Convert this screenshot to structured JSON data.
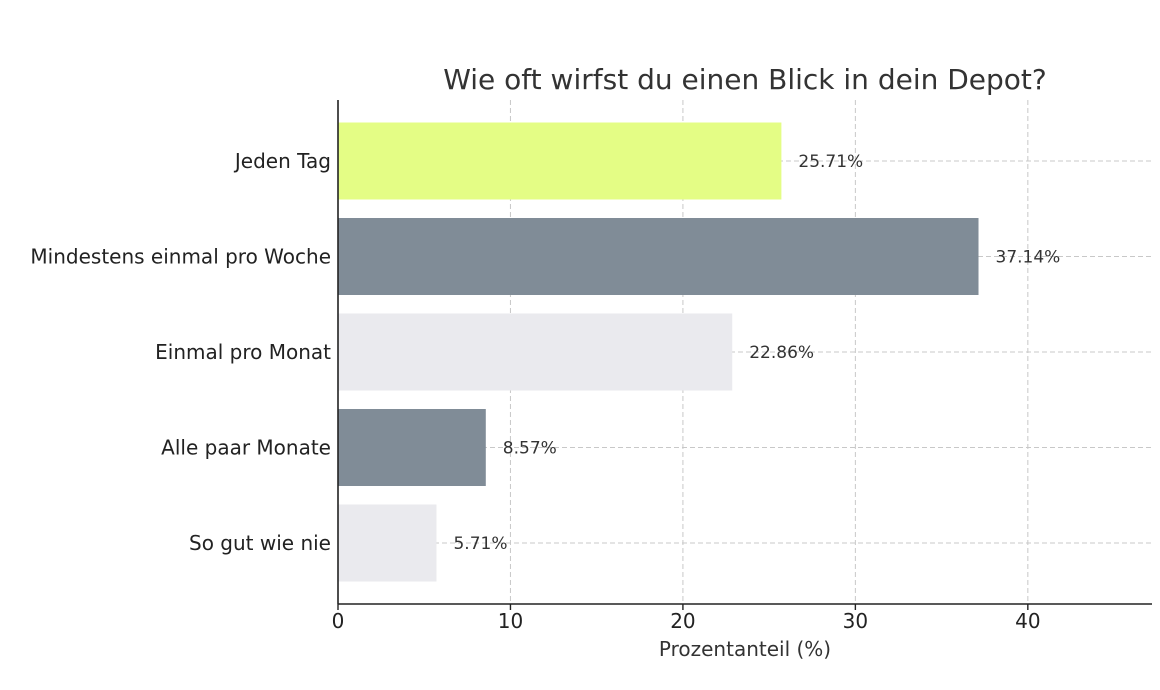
{
  "chart_data": {
    "type": "bar",
    "orientation": "horizontal",
    "title": "Wie oft wirfst du einen Blick in dein Depot?",
    "xlabel": "Prozentanteil (%)",
    "ylabel": "",
    "categories": [
      "Jeden Tag",
      "Mindestens einmal pro Woche",
      "Einmal pro Monat",
      "Alle paar Monate",
      "So gut wie nie"
    ],
    "values": [
      25.71,
      37.14,
      22.86,
      8.57,
      5.71
    ],
    "value_labels": [
      "25.71%",
      "37.14%",
      "22.86%",
      "8.57%",
      "5.71%"
    ],
    "bar_colors": [
      "#e4fd85",
      "#808c97",
      "#eaeaee",
      "#808c97",
      "#eaeaee"
    ],
    "xlim": [
      0,
      47.2
    ],
    "xticks": [
      0,
      10,
      20,
      30,
      40
    ],
    "xtick_labels": [
      "0",
      "10",
      "20",
      "30",
      "40"
    ],
    "grid": true,
    "legend": null
  }
}
